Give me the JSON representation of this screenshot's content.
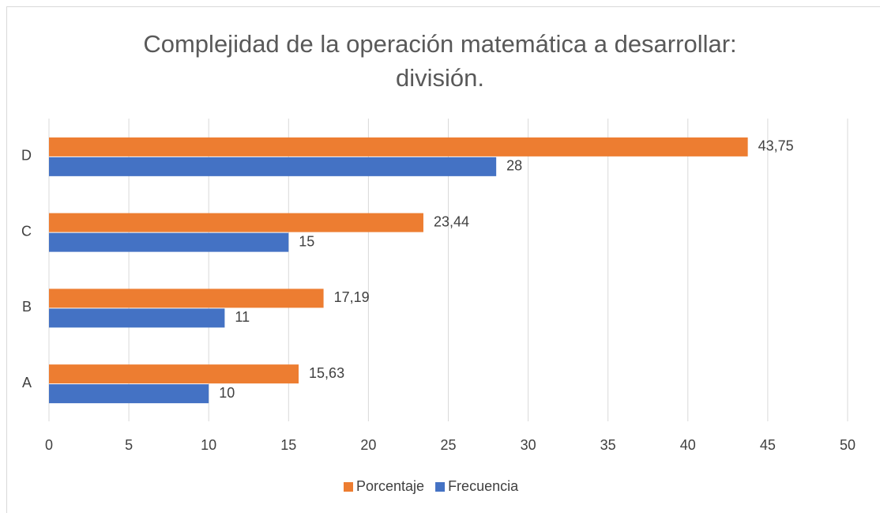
{
  "chart_data": {
    "type": "hbar",
    "title": "Complejidad de la operación matemática a desarrollar: división.",
    "categories": [
      "A",
      "B",
      "C",
      "D"
    ],
    "series": [
      {
        "name": "Porcentaje",
        "color": "#ed7d31",
        "values": [
          15.63,
          17.19,
          23.44,
          43.75
        ],
        "value_labels": [
          "15,63",
          "17,19",
          "23,44",
          "43,75"
        ]
      },
      {
        "name": "Frecuencia",
        "color": "#4472c4",
        "values": [
          10,
          11,
          15,
          28
        ]
      }
    ],
    "xlim": [
      0,
      50
    ],
    "xticks": [
      0,
      5,
      10,
      15,
      20,
      25,
      30,
      35,
      40,
      45,
      50
    ],
    "grid": true,
    "legend": "bottom"
  }
}
